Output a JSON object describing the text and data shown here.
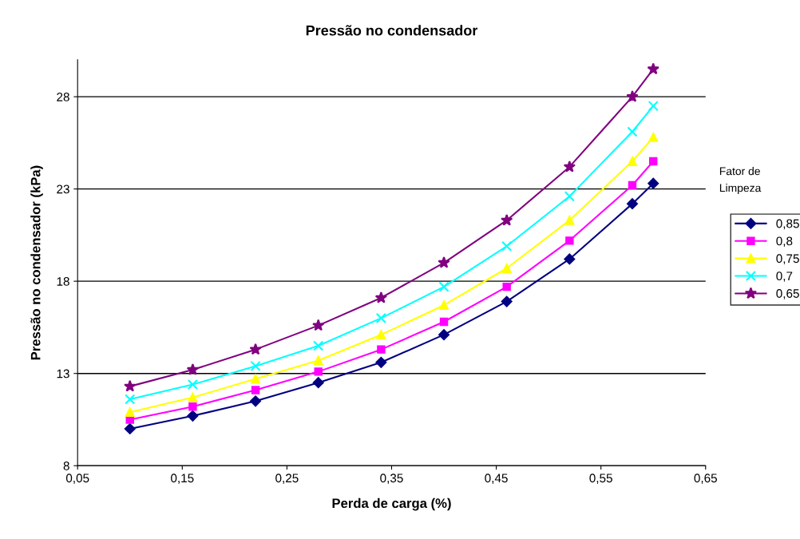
{
  "chart_data": {
    "type": "line",
    "title": "Pressão no condensador",
    "xlabel": "Perda de carga (%)",
    "ylabel": "Pressão no condensador (kPa)",
    "legend_title": "Fator de\nLimpeza",
    "x": [
      0.1,
      0.16,
      0.22,
      0.28,
      0.34,
      0.4,
      0.46,
      0.52,
      0.58,
      0.6
    ],
    "series": [
      {
        "name": "0,85",
        "color": "#000080",
        "marker": "diamond",
        "values": [
          10.0,
          10.7,
          11.5,
          12.5,
          13.6,
          15.1,
          16.9,
          19.2,
          22.2,
          23.3
        ]
      },
      {
        "name": "0,8",
        "color": "#ff00ff",
        "marker": "square",
        "values": [
          10.5,
          11.2,
          12.1,
          13.1,
          14.3,
          15.8,
          17.7,
          20.2,
          23.2,
          24.5
        ]
      },
      {
        "name": "0,75",
        "color": "#ffff00",
        "marker": "triangle",
        "values": [
          10.9,
          11.7,
          12.7,
          13.7,
          15.1,
          16.7,
          18.7,
          21.3,
          24.5,
          25.8
        ]
      },
      {
        "name": "0,7",
        "color": "#00ffff",
        "marker": "cross",
        "values": [
          11.6,
          12.4,
          13.4,
          14.5,
          16.0,
          17.7,
          19.9,
          22.6,
          26.1,
          27.5
        ]
      },
      {
        "name": "0,65",
        "color": "#800080",
        "marker": "star",
        "values": [
          12.3,
          13.2,
          14.3,
          15.6,
          17.1,
          19.0,
          21.3,
          24.2,
          28.0,
          29.5
        ]
      }
    ],
    "xlim": [
      0.05,
      0.65
    ],
    "xticks": [
      {
        "value": 0.05,
        "label": "0,05"
      },
      {
        "value": 0.15,
        "label": "0,15"
      },
      {
        "value": 0.25,
        "label": "0,25"
      },
      {
        "value": 0.35,
        "label": "0,35"
      },
      {
        "value": 0.45,
        "label": "0,45"
      },
      {
        "value": 0.55,
        "label": "0,55"
      },
      {
        "value": 0.65,
        "label": "0,65"
      }
    ],
    "ylim": [
      8,
      30
    ],
    "yticks": [
      8,
      13,
      18,
      23,
      28
    ],
    "grid": "y",
    "legend": "right",
    "line_style": "solid"
  }
}
